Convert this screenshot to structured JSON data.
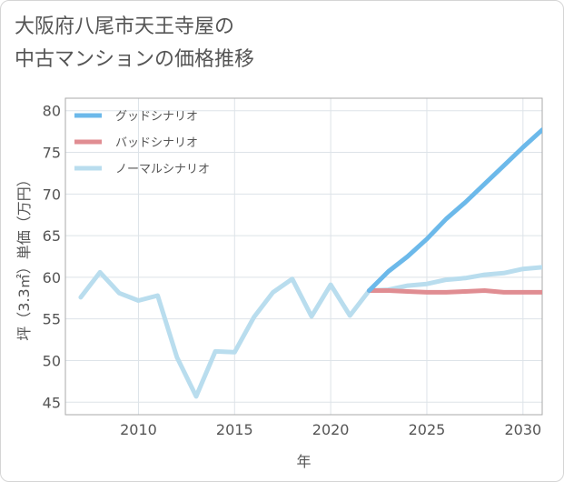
{
  "title_line1": "大阪府八尾市天王寺屋の",
  "title_line2": "中古マンションの価格推移",
  "chart_data": {
    "type": "line",
    "xlabel": "年",
    "ylabel": "坪（3.3㎡）単価（万円）",
    "xlim": [
      2006.2,
      2031.0
    ],
    "ylim": [
      43.5,
      81.5
    ],
    "grid": true,
    "legend_position": "top-left",
    "xticks": [
      2010,
      2015,
      2020,
      2025,
      2030
    ],
    "yticks": [
      45,
      50,
      55,
      60,
      65,
      70,
      75,
      80
    ],
    "series": [
      {
        "name": "グッドシナリオ",
        "color": "#6cb9ea",
        "x": [
          2022,
          2023,
          2024,
          2025,
          2026,
          2027,
          2028,
          2029,
          2030,
          2031
        ],
        "y": [
          58.4,
          60.7,
          62.5,
          64.6,
          67.0,
          69.0,
          71.2,
          73.4,
          75.6,
          77.7
        ]
      },
      {
        "name": "バッドシナリオ",
        "color": "#e08d92",
        "x": [
          2022,
          2023,
          2024,
          2025,
          2026,
          2027,
          2028,
          2029,
          2030,
          2031
        ],
        "y": [
          58.4,
          58.4,
          58.3,
          58.2,
          58.2,
          58.3,
          58.4,
          58.2,
          58.2,
          58.2
        ]
      },
      {
        "name": "ノーマルシナリオ",
        "color": "#b9ddee",
        "x": [
          2007,
          2008,
          2009,
          2010,
          2011,
          2012,
          2013,
          2014,
          2015,
          2016,
          2017,
          2018,
          2019,
          2020,
          2021,
          2022,
          2023,
          2024,
          2025,
          2026,
          2027,
          2028,
          2029,
          2030,
          2031
        ],
        "y": [
          57.6,
          60.6,
          58.1,
          57.2,
          57.8,
          50.4,
          45.7,
          51.1,
          51.0,
          55.2,
          58.2,
          59.8,
          55.3,
          59.1,
          55.4,
          58.4,
          58.5,
          59.0,
          59.2,
          59.7,
          59.9,
          60.3,
          60.5,
          61.0,
          61.2
        ]
      }
    ]
  }
}
